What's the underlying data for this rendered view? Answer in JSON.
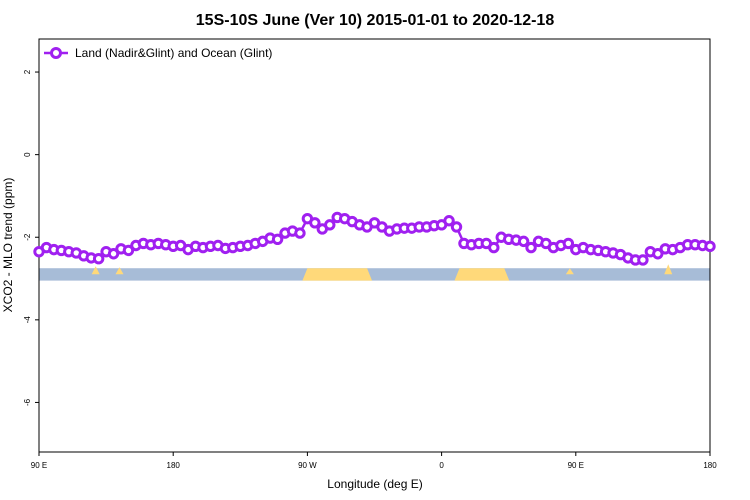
{
  "chart_data": {
    "type": "line",
    "title": "15S-10S June (Ver 10)   2015-01-01 to 2020-12-18",
    "xlabel": "Longitude (deg E)",
    "ylabel": "XCO2 - MLO trend (ppm)",
    "x_ticks": [
      {
        "value": 90,
        "label": "90 E"
      },
      {
        "value": 180,
        "label": "180"
      },
      {
        "value": 270,
        "label": "90 W"
      },
      {
        "value": 360,
        "label": "0"
      },
      {
        "value": 450,
        "label": "90 E"
      },
      {
        "value": 540,
        "label": "180"
      }
    ],
    "y_ticks": [
      {
        "value": 2,
        "label": "2"
      },
      {
        "value": 0,
        "label": "0"
      },
      {
        "value": -2,
        "label": "-2"
      },
      {
        "value": -4,
        "label": "-4"
      },
      {
        "value": -6,
        "label": "-6"
      }
    ],
    "xlim": [
      90,
      540
    ],
    "ylim": [
      -7.2,
      2.8
    ],
    "grid": false,
    "legend": {
      "position": "top-left",
      "entries": [
        "Land (Nadir&Glint) and Ocean (Glint)"
      ]
    },
    "colors": {
      "series": "#a020f0",
      "ocean": "#a7bcd7",
      "land": "#ffd97a"
    },
    "series": [
      {
        "name": "Land (Nadir&Glint) and Ocean (Glint)",
        "x": [
          90,
          95,
          100,
          105,
          110,
          115,
          120,
          125,
          130,
          135,
          140,
          145,
          150,
          155,
          160,
          165,
          170,
          175,
          180,
          185,
          190,
          195,
          200,
          205,
          210,
          215,
          220,
          225,
          230,
          235,
          240,
          245,
          250,
          255,
          260,
          265,
          270,
          275,
          280,
          285,
          290,
          295,
          300,
          305,
          310,
          315,
          320,
          325,
          330,
          335,
          340,
          345,
          350,
          355,
          360,
          365,
          370,
          375,
          380,
          385,
          390,
          395,
          400,
          405,
          410,
          415,
          420,
          425,
          430,
          435,
          440,
          445,
          450,
          455,
          460,
          465,
          470,
          475,
          480,
          485,
          490,
          495,
          500,
          505,
          510,
          515,
          520,
          525,
          530,
          535,
          540
        ],
        "y": [
          -2.35,
          -2.25,
          -2.3,
          -2.32,
          -2.35,
          -2.38,
          -2.45,
          -2.5,
          -2.52,
          -2.35,
          -2.4,
          -2.28,
          -2.32,
          -2.2,
          -2.15,
          -2.18,
          -2.15,
          -2.18,
          -2.22,
          -2.2,
          -2.3,
          -2.22,
          -2.25,
          -2.22,
          -2.2,
          -2.27,
          -2.25,
          -2.22,
          -2.2,
          -2.15,
          -2.1,
          -2.02,
          -2.05,
          -1.9,
          -1.85,
          -1.9,
          -1.55,
          -1.65,
          -1.8,
          -1.7,
          -1.52,
          -1.55,
          -1.62,
          -1.7,
          -1.75,
          -1.65,
          -1.75,
          -1.85,
          -1.8,
          -1.78,
          -1.78,
          -1.75,
          -1.75,
          -1.72,
          -1.7,
          -1.6,
          -1.75,
          -2.15,
          -2.18,
          -2.15,
          -2.15,
          -2.25,
          -2.0,
          -2.05,
          -2.07,
          -2.1,
          -2.25,
          -2.1,
          -2.15,
          -2.25,
          -2.2,
          -2.15,
          -2.3,
          -2.25,
          -2.3,
          -2.32,
          -2.35,
          -2.38,
          -2.42,
          -2.5,
          -2.55,
          -2.55,
          -2.35,
          -2.4,
          -2.28,
          -2.3,
          -2.25,
          -2.18,
          -2.18,
          -2.2,
          -2.22
        ]
      }
    ],
    "surface_band": {
      "y_range": [
        -2.75,
        -3.05
      ],
      "land_lon_ranges": [
        [
          270,
          310
        ],
        [
          372,
          402
        ]
      ]
    }
  }
}
